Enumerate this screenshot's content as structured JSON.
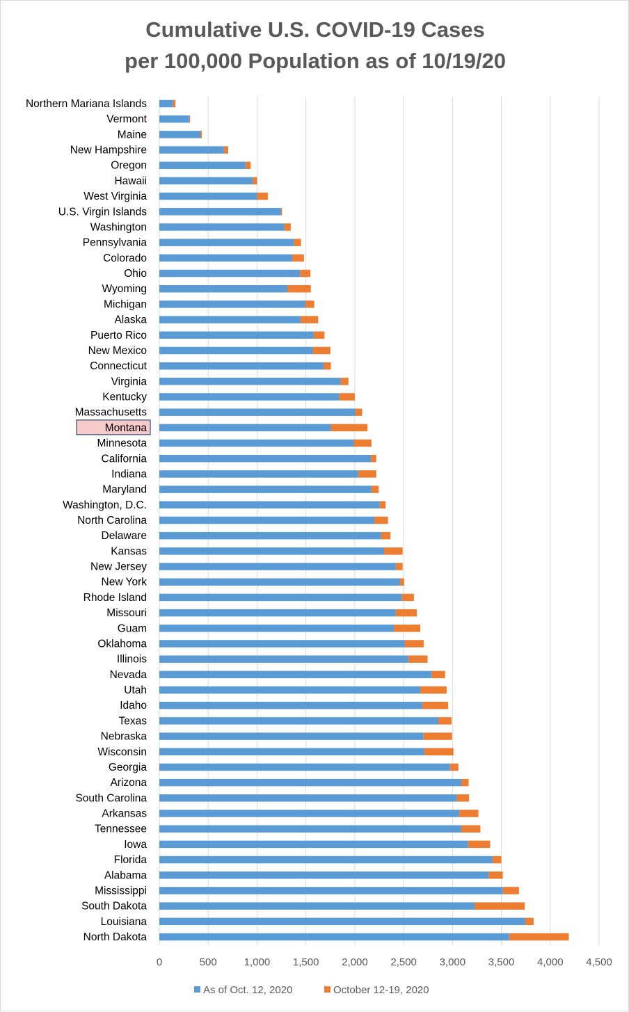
{
  "chart_data": {
    "type": "bar",
    "orientation": "horizontal",
    "stacked": true,
    "title": "Cumulative U.S. COVID-19 Cases\nper 100,000 Population as of 10/19/20",
    "title_lines": [
      "Cumulative U.S. COVID-19 Cases",
      "per 100,000 Population as of 10/19/20"
    ],
    "xlim": [
      0,
      4500
    ],
    "x_ticks": [
      0,
      500,
      1000,
      1500,
      2000,
      2500,
      3000,
      3500,
      4000,
      4500
    ],
    "x_tick_labels": [
      "0",
      "500",
      "1,000",
      "1,500",
      "2,000",
      "2,500",
      "3,000",
      "3,500",
      "4,000",
      "4,500"
    ],
    "grid": "vertical",
    "legend_position": "bottom",
    "highlighted_category": "Montana",
    "highlight_color": "#f8cbcb",
    "highlight_border": "#2e4a7a",
    "categories": [
      "Northern Mariana Islands",
      "Vermont",
      "Maine",
      "New Hampshire",
      "Oregon",
      "Hawaii",
      "West Virginia",
      "U.S. Virgin Islands",
      "Washington",
      "Pennsylvania",
      "Colorado",
      "Ohio",
      "Wyoming",
      "Michigan",
      "Alaska",
      "Puerto Rico",
      "New Mexico",
      "Connecticut",
      "Virginia",
      "Kentucky",
      "Massachusetts",
      "Montana",
      "Minnesota",
      "California",
      "Indiana",
      "Maryland",
      "Washington, D.C.",
      "North Carolina",
      "Delaware",
      "Kansas",
      "New Jersey",
      "New York",
      "Rhode Island",
      "Missouri",
      "Guam",
      "Oklahoma",
      "Illinois",
      "Nevada",
      "Utah",
      "Idaho",
      "Texas",
      "Nebraska",
      "Wisconsin",
      "Georgia",
      "Arizona",
      "South Carolina",
      "Arkansas",
      "Tennessee",
      "Iowa",
      "Florida",
      "Alabama",
      "Mississippi",
      "South Dakota",
      "Louisiana",
      "North Dakota"
    ],
    "series": [
      {
        "name": "As of Oct. 12, 2020",
        "color": "#5b9bd5",
        "values": [
          140,
          305,
          420,
          660,
          880,
          955,
          1000,
          1245,
          1280,
          1375,
          1360,
          1440,
          1310,
          1495,
          1445,
          1580,
          1570,
          1680,
          1855,
          1840,
          2005,
          1755,
          1990,
          2165,
          2035,
          2170,
          2255,
          2200,
          2270,
          2300,
          2420,
          2460,
          2480,
          2420,
          2400,
          2510,
          2550,
          2785,
          2670,
          2690,
          2855,
          2700,
          2710,
          2975,
          3090,
          3045,
          3070,
          3090,
          3160,
          3410,
          3370,
          3515,
          3225,
          3745,
          3580
        ]
      },
      {
        "name": "October 12-19, 2020",
        "color": "#ed7d31",
        "values": [
          25,
          10,
          15,
          45,
          55,
          45,
          110,
          10,
          65,
          75,
          120,
          105,
          240,
          90,
          180,
          110,
          180,
          75,
          80,
          160,
          70,
          375,
          180,
          55,
          185,
          75,
          60,
          140,
          95,
          190,
          70,
          45,
          125,
          215,
          270,
          195,
          195,
          140,
          270,
          265,
          135,
          295,
          300,
          85,
          75,
          125,
          195,
          195,
          225,
          90,
          145,
          165,
          515,
          85,
          610
        ]
      }
    ]
  }
}
